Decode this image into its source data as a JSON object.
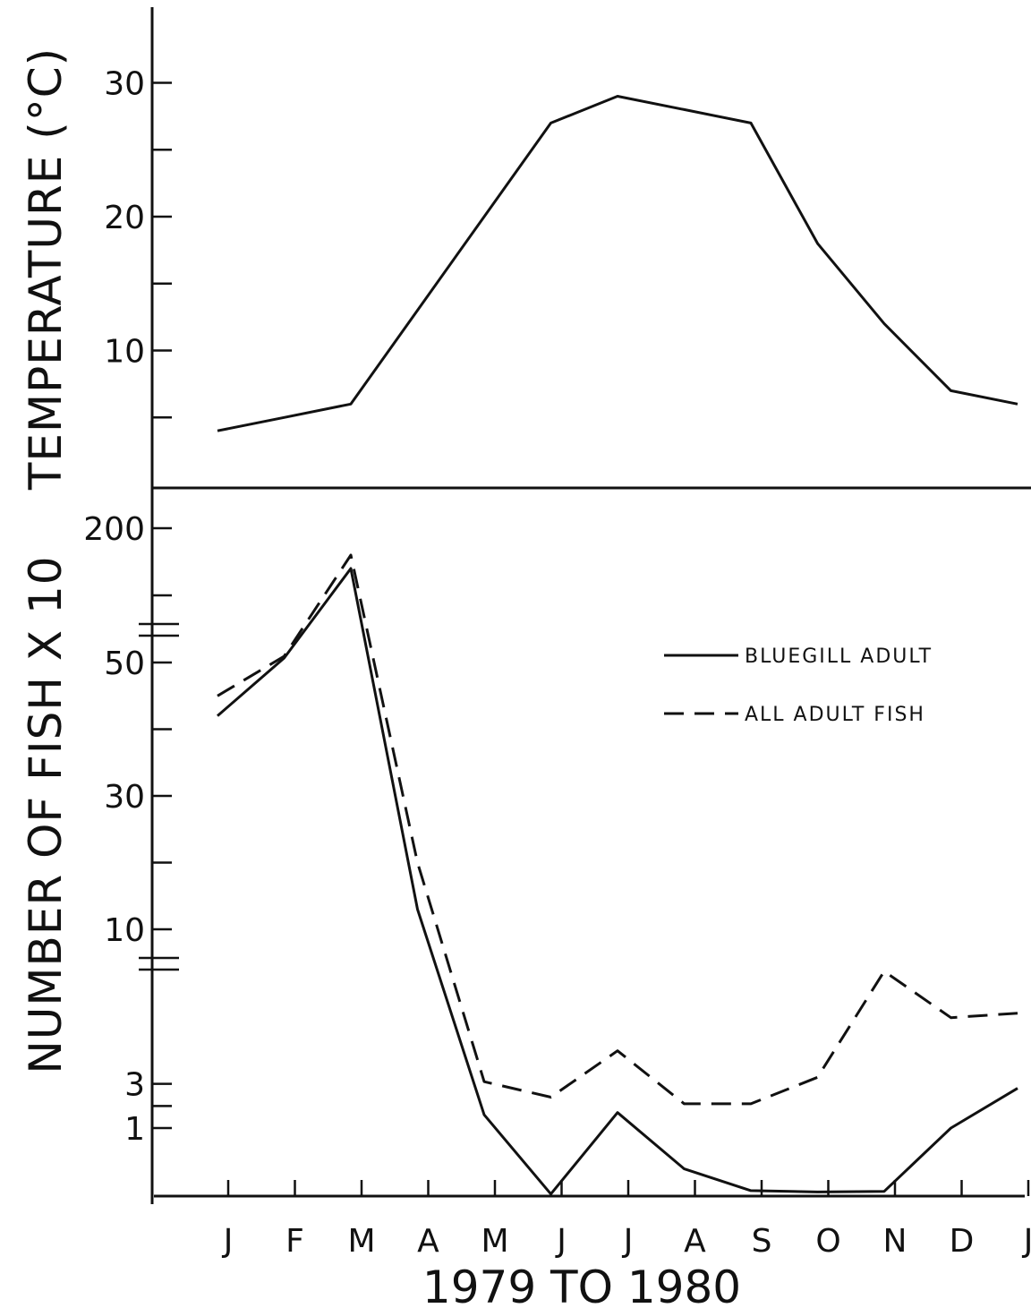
{
  "chart_data": [
    {
      "type": "line",
      "ylabel": "TEMPERATURE (°C)",
      "ylim": [
        0,
        35
      ],
      "yticks": [
        10,
        20,
        30
      ],
      "ytick_labels": [
        "10",
        "20",
        "30"
      ],
      "categories": [
        "J",
        "F",
        "M",
        "A",
        "M",
        "J",
        "J",
        "A",
        "S",
        "O",
        "N",
        "D",
        "J"
      ],
      "series": [
        {
          "values": [
            4,
            5,
            6,
            13,
            20,
            27,
            29,
            28,
            27,
            18,
            12,
            7,
            6
          ]
        }
      ]
    },
    {
      "type": "line",
      "ylabel": "NUMBER OF FISH X 10",
      "y_scale": "broken",
      "ytick_labels": [
        "1",
        "3",
        "10",
        "30",
        "50",
        "200"
      ],
      "categories": [
        "J",
        "F",
        "M",
        "A",
        "M",
        "J",
        "J",
        "A",
        "S",
        "O",
        "N",
        "D",
        "J"
      ],
      "series": [
        {
          "name": "BLUEGILL ADULT",
          "style": "solid",
          "values": [
            42,
            55,
            155,
            13,
            1.6,
            0.03,
            1.7,
            0.4,
            0.08,
            0.06,
            0.07,
            1.0,
            2.8
          ]
        },
        {
          "name": "ALL ADULT FISH",
          "style": "dashed",
          "values": [
            45,
            57,
            170,
            20,
            3.1,
            2.4,
            4.5,
            2.1,
            2.1,
            3.3,
            8.1,
            6.0,
            6.2
          ]
        }
      ],
      "legend": "upper-right"
    }
  ],
  "xaxis": {
    "title": "1979 TO 1980",
    "months": [
      "J",
      "F",
      "M",
      "A",
      "M",
      "J",
      "J",
      "A",
      "S",
      "O",
      "N",
      "D",
      "J"
    ]
  }
}
